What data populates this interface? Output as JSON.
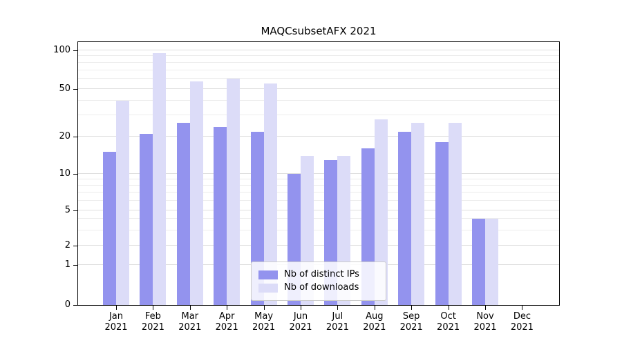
{
  "chart_data": {
    "type": "bar",
    "title": "MAQCsubsetAFX 2021",
    "categories": [
      "Jan 2021",
      "Feb 2021",
      "Mar 2021",
      "Apr 2021",
      "May 2021",
      "Jun 2021",
      "Jul 2021",
      "Aug 2021",
      "Sep 2021",
      "Oct 2021",
      "Nov 2021",
      "Dec 2021"
    ],
    "series": [
      {
        "name": "Nb of distinct IPs",
        "color": "#9393ee",
        "values": [
          15,
          21,
          26,
          24,
          22,
          10,
          13,
          16,
          22,
          18,
          4,
          0
        ]
      },
      {
        "name": "Nb of downloads",
        "color": "#dcdcf8",
        "values": [
          40,
          95,
          57,
          60,
          55,
          14,
          14,
          28,
          26,
          26,
          4,
          0
        ]
      }
    ],
    "y_ticks": [
      0,
      1,
      2,
      5,
      10,
      20,
      50,
      100
    ],
    "y_scale": "symlog",
    "y_anchors": [
      [
        0,
        0
      ],
      [
        1,
        0.151
      ],
      [
        2,
        0.225
      ],
      [
        5,
        0.36
      ],
      [
        10,
        0.499
      ],
      [
        20,
        0.64
      ],
      [
        50,
        0.822
      ],
      [
        100,
        0.969
      ]
    ],
    "minor_gridlines": [
      3,
      4,
      6,
      7,
      8,
      9,
      30,
      40,
      60,
      70,
      80,
      90
    ],
    "grid": true,
    "legend_position": "lower center",
    "xlabel": "",
    "ylabel": ""
  }
}
